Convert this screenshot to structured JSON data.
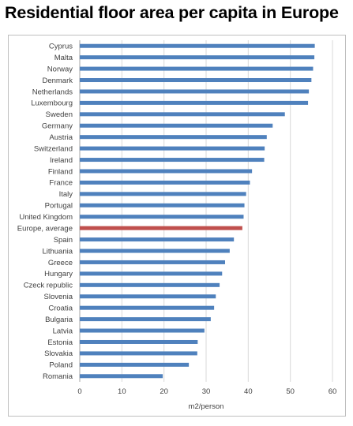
{
  "title": "Residential floor area per capita in Europe",
  "chart_data": {
    "type": "bar",
    "orientation": "horizontal",
    "title": "Residential floor area per capita in Europe",
    "xlabel": "m2/person",
    "ylabel": "",
    "xlim": [
      0,
      60
    ],
    "xticks": [
      0,
      10,
      20,
      30,
      40,
      50,
      60
    ],
    "grid": true,
    "categories": [
      "Cyprus",
      "Malta",
      "Norway",
      "Denmark",
      "Netherlands",
      "Luxembourg",
      "Sweden",
      "Germany",
      "Austria",
      "Switzerland",
      "Ireland",
      "Finland",
      "France",
      "Italy",
      "Portugal",
      "United Kingdom",
      "Europe, average",
      "Spain",
      "Lithuania",
      "Greece",
      "Hungary",
      "Czeck republic",
      "Slovenia",
      "Croatia",
      "Bulgaria",
      "Latvia",
      "Estonia",
      "Slovakia",
      "Poland",
      "Romania"
    ],
    "values": [
      55.8,
      55.7,
      55.4,
      55.0,
      54.4,
      54.2,
      48.7,
      45.8,
      44.4,
      43.9,
      43.8,
      40.9,
      40.4,
      39.5,
      39.1,
      38.9,
      38.6,
      36.6,
      35.6,
      34.5,
      33.8,
      33.2,
      32.3,
      31.9,
      31.1,
      29.6,
      28.0,
      27.9,
      25.9,
      19.7
    ],
    "colors": {
      "default": "#4f81bd",
      "highlight": "#c0504d"
    },
    "highlight_category": "Europe, average"
  }
}
